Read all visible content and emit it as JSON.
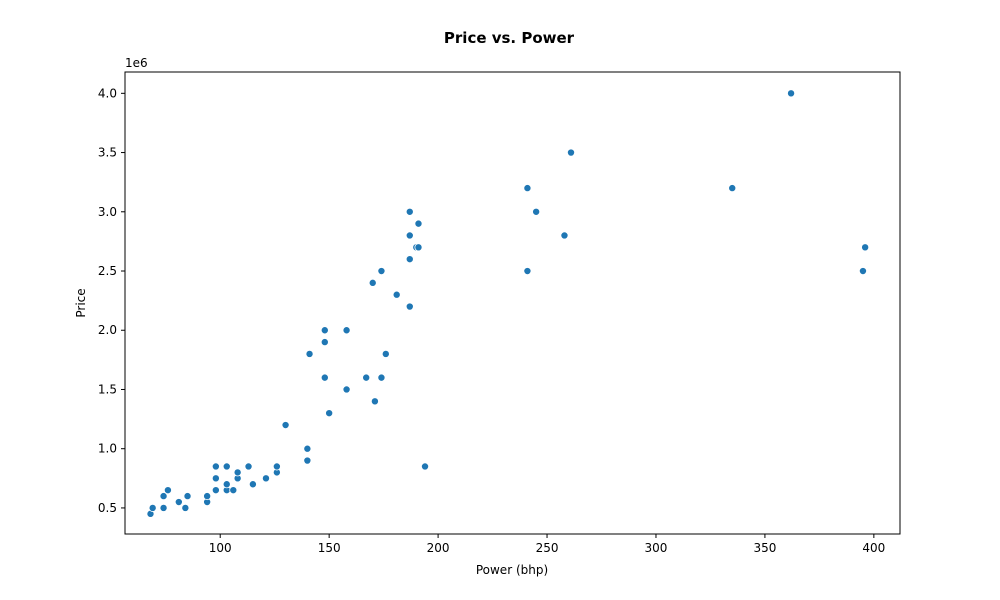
{
  "chart_data": {
    "type": "scatter",
    "title": "Price vs. Power",
    "xlabel": "Power (bhp)",
    "ylabel": "Price",
    "y_offset_label": "1e6",
    "xlim": [
      56.3,
      412
    ],
    "ylim": [
      0.28,
      4.18
    ],
    "x_ticks": [
      100,
      150,
      200,
      250,
      300,
      350,
      400
    ],
    "y_ticks": [
      0.5,
      1.0,
      1.5,
      2.0,
      2.5,
      3.0,
      3.5,
      4.0
    ],
    "x_tick_labels": [
      "100",
      "150",
      "200",
      "250",
      "300",
      "350",
      "400"
    ],
    "y_tick_labels": [
      "0.5",
      "1.0",
      "1.5",
      "2.0",
      "2.5",
      "3.0",
      "3.5",
      "4.0"
    ],
    "grid": false,
    "marker_color": "#1f77b4",
    "series": [
      {
        "x": [
          68,
          69,
          74,
          74,
          76,
          81,
          84,
          85,
          94,
          94,
          98,
          98,
          98,
          103,
          103,
          103,
          106,
          108,
          108,
          113,
          115,
          121,
          126,
          126,
          130,
          140,
          140,
          141,
          148,
          148,
          148,
          150,
          158,
          158,
          167,
          170,
          171,
          174,
          174,
          176,
          181,
          187,
          187,
          187,
          187,
          190,
          191,
          191,
          194,
          241,
          241,
          245,
          258,
          261,
          335,
          362,
          395,
          396
        ],
        "y": [
          0.45,
          0.5,
          0.5,
          0.6,
          0.65,
          0.55,
          0.5,
          0.6,
          0.55,
          0.6,
          0.65,
          0.75,
          0.85,
          0.65,
          0.7,
          0.85,
          0.65,
          0.75,
          0.8,
          0.85,
          0.7,
          0.75,
          0.8,
          0.85,
          1.2,
          0.9,
          1.0,
          1.8,
          1.6,
          1.9,
          2.0,
          1.3,
          1.5,
          2.0,
          1.6,
          2.4,
          1.4,
          1.6,
          2.5,
          1.8,
          2.3,
          2.2,
          2.6,
          2.8,
          3.0,
          2.7,
          2.7,
          2.9,
          0.85,
          2.5,
          3.2,
          3.0,
          2.8,
          3.5,
          3.2,
          4.0,
          2.5,
          2.7
        ]
      }
    ]
  }
}
